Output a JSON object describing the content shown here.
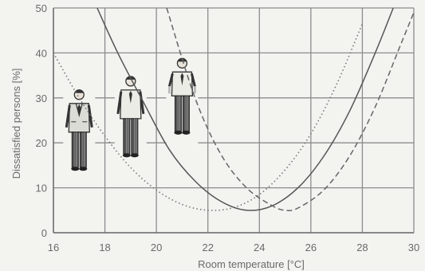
{
  "chart_data": {
    "type": "line",
    "xlabel": "Room temperature [°C]",
    "ylabel": "Dissatisfied persons [%]",
    "xlim": [
      16,
      30
    ],
    "ylim": [
      0,
      50
    ],
    "xticks": [
      16,
      18,
      20,
      22,
      24,
      26,
      28,
      30
    ],
    "yticks": [
      0,
      10,
      20,
      30,
      40,
      50
    ],
    "grid": true,
    "series": [
      {
        "style": "dotted",
        "color": "#777777",
        "x": [
          16.0,
          17.0,
          18.0,
          19.0,
          20.0,
          21.0,
          22.0,
          23.0,
          24.0,
          25.0,
          26.0,
          27.0,
          28.0
        ],
        "y": [
          40.0,
          30.0,
          21.5,
          14.5,
          9.5,
          6.3,
          5.0,
          5.6,
          8.5,
          14.0,
          22.0,
          33.0,
          46.5
        ]
      },
      {
        "style": "solid",
        "color": "#555555",
        "x": [
          17.7,
          18.5,
          19.5,
          20.5,
          21.5,
          22.5,
          23.5,
          24.5,
          25.5,
          26.5,
          27.5,
          28.5,
          29.2
        ],
        "y": [
          50.0,
          40.0,
          29.0,
          18.5,
          11.5,
          7.0,
          5.0,
          6.0,
          10.0,
          17.0,
          27.0,
          40.0,
          50.0
        ]
      },
      {
        "style": "dashed",
        "color": "#666666",
        "x": [
          20.4,
          21.5,
          22.5,
          23.5,
          24.5,
          25.0,
          25.5,
          26.5,
          27.5,
          28.5,
          29.5,
          30.0
        ],
        "y": [
          50.0,
          30.0,
          17.5,
          10.0,
          6.0,
          5.0,
          5.5,
          9.5,
          17.0,
          28.0,
          42.0,
          49.0
        ]
      }
    ]
  },
  "figures": [
    {
      "name": "person-suit-jacket",
      "x": 17.0,
      "y": 30.0
    },
    {
      "name": "person-shirt-tie",
      "x": 19.0,
      "y": 33.0
    },
    {
      "name": "person-short-sleeve",
      "x": 21.0,
      "y": 37.0
    }
  ]
}
